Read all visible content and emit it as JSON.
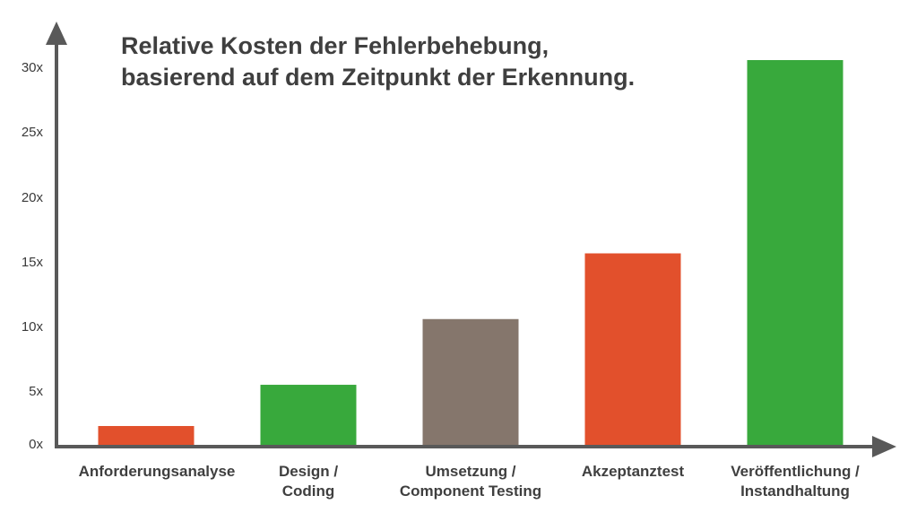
{
  "chart_data": {
    "type": "bar",
    "title": [
      "Relative Kosten der Fehlerbehebung,",
      "basierend auf dem Zeitpunkt der Erkennung."
    ],
    "xlabel": "",
    "ylabel": "",
    "ylim": [
      0,
      30
    ],
    "yticks": [
      "0x",
      "5x",
      "10x",
      "15x",
      "20x",
      "25x",
      "30x"
    ],
    "categories": [
      [
        "Anforderungsanalyse"
      ],
      [
        "Design /",
        "Coding"
      ],
      [
        "Umsetzung /",
        "Component Testing"
      ],
      [
        "Akzeptanztest"
      ],
      [
        "Veröffentlichung /",
        "Instandhaltung"
      ]
    ],
    "values": [
      1.6,
      4.8,
      9.9,
      15,
      30
    ],
    "bar_colors": [
      "#e2502c",
      "#38a93c",
      "#85766c",
      "#e2502c",
      "#38a93c"
    ],
    "axis_color": "#595959",
    "grid": false,
    "legend": "none"
  }
}
